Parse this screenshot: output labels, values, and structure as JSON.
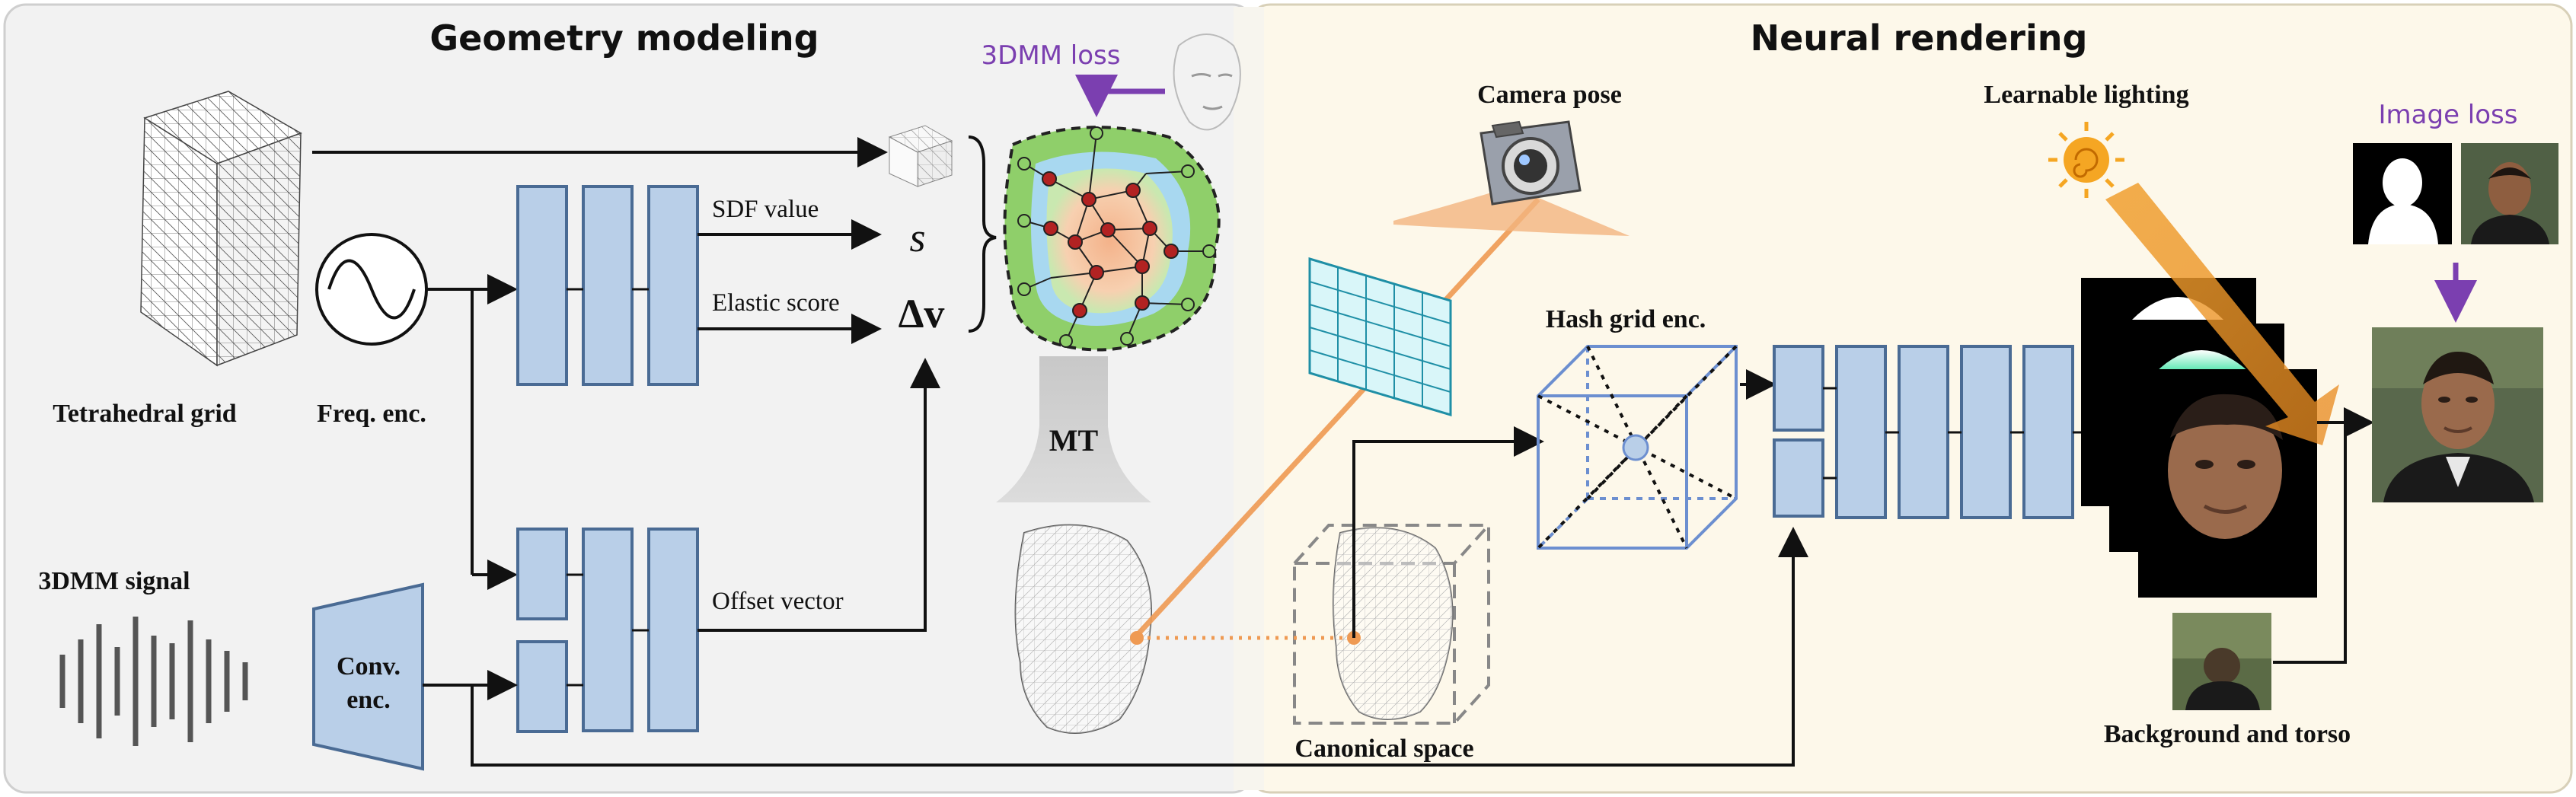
{
  "panels": {
    "left_title": "Geometry modeling",
    "right_title": "Neural rendering"
  },
  "labels": {
    "tetrahedral_grid": "Tetrahedral grid",
    "freq_enc": "Freq. enc.",
    "sdf_value": "SDF value",
    "s_symbol": "s",
    "elastic_score": "Elastic score",
    "delta_v": "Δv",
    "offset_vector": "Offset vector",
    "signal_3dmm": "3DMM signal",
    "conv_enc_1": "Conv.",
    "conv_enc_2": "enc.",
    "loss_3dmm": "3DMM loss",
    "mt": "MT",
    "camera_pose": "Camera pose",
    "hash_grid_enc": "Hash grid enc.",
    "canonical_space": "Canonical space",
    "learnable_lighting": "Learnable lighting",
    "image_loss": "Image loss",
    "background_torso": "Background and torso"
  },
  "colors": {
    "left_bg": "#f2f2f2",
    "right_bg": "#fdf8ea",
    "block_fill": "#b9cfe8",
    "block_stroke": "#4a6b94",
    "accent_orange": "#ef9a53",
    "loss_purple": "#7b3fb0",
    "mesh_green": "#8fcf6a",
    "node_red": "#b22222",
    "grid_cyan": "#d9f6f9"
  },
  "icons": [
    "cube-mesh-icon",
    "sine-wave-icon",
    "camera-icon",
    "sun-icon",
    "head-mesh-icon",
    "face-render-icon"
  ]
}
